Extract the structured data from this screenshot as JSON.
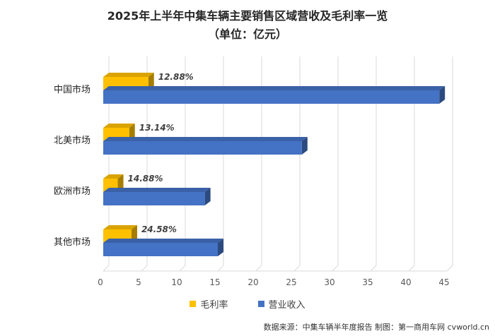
{
  "chart_data": {
    "type": "bar",
    "orientation": "horizontal",
    "title": "2025年上半年中集车辆主要销售区域营收及毛利率一览",
    "subtitle": "（单位：亿元）",
    "categories": [
      "中国市场",
      "北美市场",
      "欧洲市场",
      "其他市场"
    ],
    "series": [
      {
        "name": "毛利率",
        "color": "#FFC000",
        "values": [
          12.88,
          13.14,
          14.88,
          24.58
        ],
        "bar_lengths": [
          5.9,
          3.4,
          1.9,
          3.7
        ],
        "labels": [
          "12.88%",
          "13.14%",
          "14.88%",
          "24.58%"
        ]
      },
      {
        "name": "营业收入",
        "color": "#4472C4",
        "values": [
          44.0,
          26.0,
          13.3,
          15.0
        ]
      }
    ],
    "xlim": [
      0,
      45
    ],
    "xticks": [
      "0",
      "5",
      "10",
      "15",
      "20",
      "25",
      "30",
      "35",
      "40",
      "45"
    ],
    "grid": true,
    "style": "3d",
    "legend_position": "bottom"
  },
  "source_text": "数据来源：中集车辆半年度报告 制图：第一商用车网 cvworld.cn"
}
